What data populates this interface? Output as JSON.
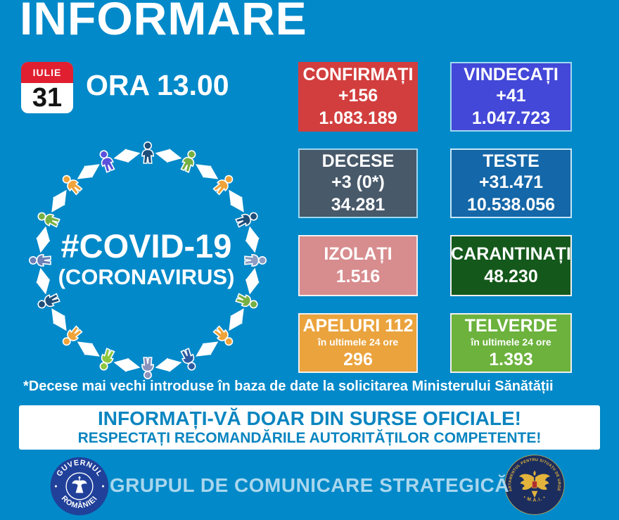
{
  "header": {
    "title": "INFORMARE"
  },
  "date": {
    "month": "IULIE",
    "day": "31",
    "time_label": "ORA 13.00"
  },
  "circle": {
    "hashtag": "#COVID-19",
    "subtitle": "(CORONAVIRUS)",
    "people_colors": [
      "#1f4e79",
      "#76b043",
      "#f0a339",
      "#1f4e79",
      "#8b9dc3",
      "#76b043",
      "#f0a339",
      "#2c5aa0",
      "#8a93bd",
      "#8dc63f",
      "#f0a339",
      "#1f4e79",
      "#6b80b8",
      "#76b043",
      "#f0a339",
      "#5a50dc"
    ]
  },
  "stats": [
    {
      "id": "confirmati",
      "label": "CONFIRMAȚI",
      "delta": "+156",
      "total": "1.083.189",
      "bg": "#d23e3e",
      "border": ""
    },
    {
      "id": "vindecati",
      "label": "VINDECAȚI",
      "delta": "+41",
      "total": "1.047.723",
      "bg": "#4348d8",
      "border": "#9fd7f0"
    },
    {
      "id": "decese",
      "label": "DECESE",
      "delta": "+3 (0*)",
      "total": "34.281",
      "bg": "#48596a",
      "border": "#9fd7f0"
    },
    {
      "id": "teste",
      "label": "TESTE",
      "delta": "+31.471",
      "total": "10.538.056",
      "bg": "#1467a8",
      "border": "#c6e6f5"
    },
    {
      "id": "izolati",
      "label": "IZOLAȚI",
      "delta": "",
      "total": "1.516",
      "bg": "#d78c8e",
      "border": "#f3efee"
    },
    {
      "id": "carantinati",
      "label": "CARANTINAȚI",
      "delta": "",
      "total": "48.230",
      "bg": "#14591b",
      "border": "#f3efee"
    },
    {
      "id": "apeluri112",
      "label": "APELURI 112",
      "sublabel": "în ultimele 24 ore",
      "total": "296",
      "bg": "#eaa33d",
      "border": "#f3efee"
    },
    {
      "id": "telverde",
      "label": "TELVERDE",
      "sublabel": "în ultimele 24 ore",
      "total": "1.393",
      "bg": "#6cb23d",
      "border": "#f3efee"
    }
  ],
  "footnote": "*Decese mai vechi introduse în baza de date la solicitarea Ministerului Sănătății",
  "banner": {
    "line1": "INFORMAȚI-VĂ DOAR DIN SURSE OFICIALE!",
    "line2": "RESPECTAȚI RECOMANDĂRILE AUTORITĂȚILOR COMPETENTE!"
  },
  "footer": {
    "text": "GRUPUL DE COMUNICARE STRATEGICĂ",
    "gov_logo_top": "GUVERNUL",
    "gov_logo_bottom": "ROMÂNIEI",
    "mai_ring": "DEPARTAMENTUL PENTRU SITUAȚII DE URGENȚĂ",
    "mai_bottom": "• M.A.I. •"
  },
  "colors": {
    "background": "#0289c9",
    "banner_text": "#0a85c0",
    "calendar_red": "#e01f30",
    "footer_text": "#a9d6ed",
    "gov_logo_blue": "#20409a",
    "mai_navy": "#1b2d5e",
    "mai_gold": "#e3b33c"
  }
}
